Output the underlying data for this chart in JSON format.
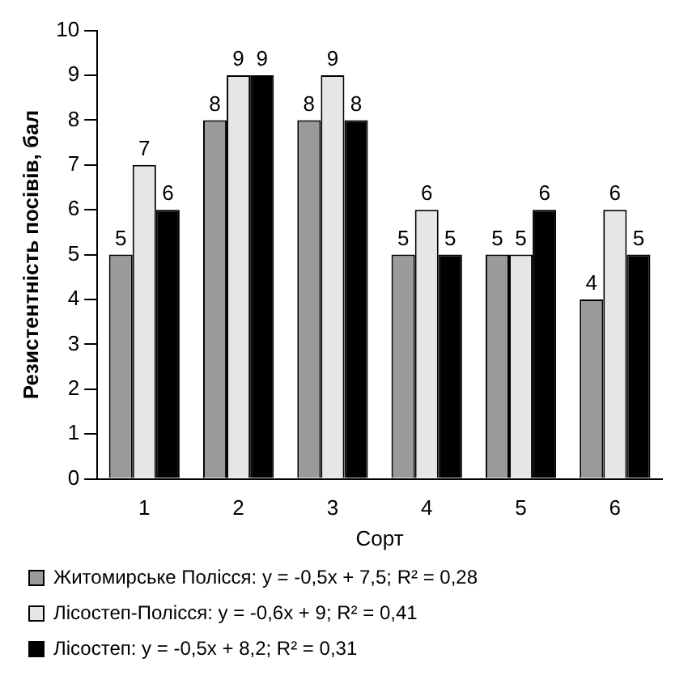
{
  "chart_data": {
    "type": "bar",
    "xlabel": "Сорт",
    "ylabel": "Резистентність посівів, бал",
    "categories": [
      "1",
      "2",
      "3",
      "4",
      "5",
      "6"
    ],
    "series": [
      {
        "name": "Житомирське Полісся: y = -0,5x + 7,5; R² = 0,28",
        "color": "#9a9a9a",
        "values": [
          5,
          8,
          8,
          5,
          5,
          4
        ]
      },
      {
        "name": "Лісостеп-Полісся: y = -0,6x + 9; R² = 0,41",
        "color": "#e6e6e6",
        "values": [
          7,
          9,
          9,
          6,
          5,
          6
        ]
      },
      {
        "name": "Лісостеп: y = -0,5x + 8,2; R² = 0,31",
        "color": "#000000",
        "values": [
          6,
          9,
          8,
          5,
          6,
          5
        ]
      }
    ],
    "ylim": [
      0,
      10
    ],
    "yticks": [
      0,
      1,
      2,
      3,
      4,
      5,
      6,
      7,
      8,
      9,
      10
    ],
    "grid": false,
    "legend": "bottom",
    "data_labels": true
  }
}
